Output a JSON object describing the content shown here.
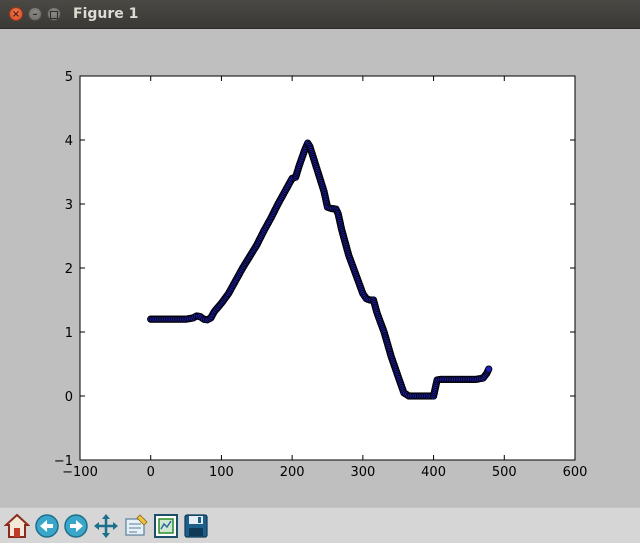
{
  "window": {
    "title": "Figure 1",
    "controls": [
      "close-icon",
      "minimize-icon",
      "maximize-icon"
    ]
  },
  "toolbar": {
    "buttons": [
      {
        "name": "home",
        "icon": "home-icon"
      },
      {
        "name": "back",
        "icon": "arrow-left-icon"
      },
      {
        "name": "forward",
        "icon": "arrow-right-icon"
      },
      {
        "name": "pan",
        "icon": "move-arrows-icon"
      },
      {
        "name": "zoom",
        "icon": "zoom-rect-icon"
      },
      {
        "name": "configure-subplots",
        "icon": "subplots-icon"
      },
      {
        "name": "save",
        "icon": "floppy-disk-icon"
      }
    ]
  },
  "colors": {
    "background": "#bfbfbf",
    "axes_face": "#ffffff",
    "marker_fill": "#1f1fbf",
    "marker_edge": "#000000"
  },
  "chart_data": {
    "type": "scatter",
    "title": "",
    "xlabel": "",
    "ylabel": "",
    "xlim": [
      -100,
      600
    ],
    "ylim": [
      -1,
      5
    ],
    "xticks": [
      "−100",
      "0",
      "100",
      "200",
      "300",
      "400",
      "500",
      "600"
    ],
    "yticks": [
      "−1",
      "0",
      "1",
      "2",
      "3",
      "4",
      "5"
    ],
    "grid": false,
    "legend": "none",
    "series": [
      {
        "points": [
          [
            0,
            1.2
          ],
          [
            10,
            1.2
          ],
          [
            20,
            1.2
          ],
          [
            30,
            1.2
          ],
          [
            40,
            1.2
          ],
          [
            50,
            1.2
          ],
          [
            60,
            1.22
          ],
          [
            65,
            1.25
          ],
          [
            70,
            1.24
          ],
          [
            75,
            1.2
          ],
          [
            80,
            1.19
          ],
          [
            85,
            1.22
          ],
          [
            90,
            1.32
          ],
          [
            100,
            1.45
          ],
          [
            110,
            1.6
          ],
          [
            120,
            1.8
          ],
          [
            130,
            2.0
          ],
          [
            140,
            2.18
          ],
          [
            150,
            2.36
          ],
          [
            160,
            2.58
          ],
          [
            170,
            2.78
          ],
          [
            180,
            3.0
          ],
          [
            190,
            3.2
          ],
          [
            200,
            3.4
          ],
          [
            205,
            3.42
          ],
          [
            210,
            3.6
          ],
          [
            218,
            3.85
          ],
          [
            222,
            3.95
          ],
          [
            225,
            3.9
          ],
          [
            235,
            3.55
          ],
          [
            245,
            3.2
          ],
          [
            250,
            2.95
          ],
          [
            255,
            2.93
          ],
          [
            262,
            2.92
          ],
          [
            265,
            2.85
          ],
          [
            270,
            2.6
          ],
          [
            280,
            2.2
          ],
          [
            290,
            1.9
          ],
          [
            300,
            1.6
          ],
          [
            305,
            1.52
          ],
          [
            310,
            1.5
          ],
          [
            315,
            1.5
          ],
          [
            320,
            1.3
          ],
          [
            330,
            1.0
          ],
          [
            340,
            0.62
          ],
          [
            350,
            0.3
          ],
          [
            358,
            0.05
          ],
          [
            365,
            0.0
          ],
          [
            375,
            0.0
          ],
          [
            385,
            0.0
          ],
          [
            395,
            0.0
          ],
          [
            400,
            0.0
          ],
          [
            405,
            0.25
          ],
          [
            410,
            0.26
          ],
          [
            420,
            0.26
          ],
          [
            430,
            0.26
          ],
          [
            440,
            0.26
          ],
          [
            450,
            0.26
          ],
          [
            460,
            0.26
          ],
          [
            470,
            0.28
          ],
          [
            475,
            0.35
          ],
          [
            478,
            0.42
          ]
        ]
      }
    ]
  }
}
